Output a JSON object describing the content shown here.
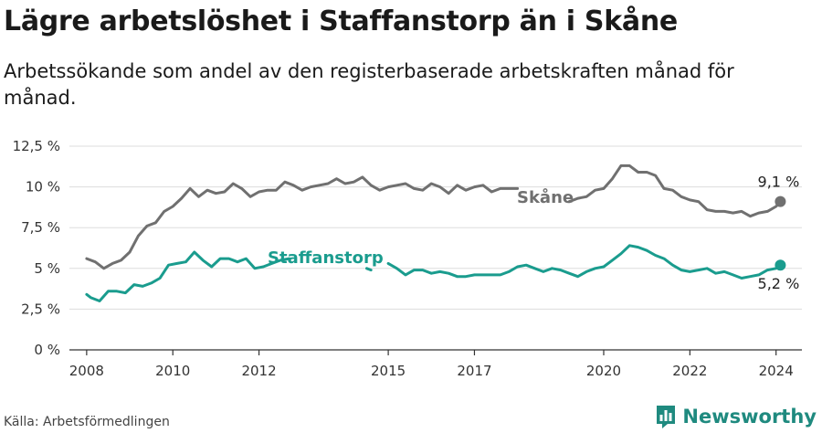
{
  "title": "Lägre arbetslöshet i Staffanstorp än i Skåne",
  "subtitle": "Arbetssökande som andel av den registerbaserade arbetskraften månad för månad.",
  "source": "Källa: Arbetsförmedlingen",
  "brand": {
    "name": "Newsworthy",
    "icon": "newsworthy-logo-icon"
  },
  "colors": {
    "skane": "#707070",
    "staffanstorp": "#1a9c8e",
    "grid": "#dddddd",
    "axis": "#333333",
    "brand": "#1f8a7f"
  },
  "chart_data": {
    "type": "line",
    "title": "Lägre arbetslöshet i Staffanstorp än i Skåne",
    "subtitle": "Arbetssökande som andel av den registerbaserade arbetskraften månad för månad.",
    "x_unit": "year (decimal, monthly)",
    "xlim": [
      2007.6,
      2024.6
    ],
    "ylim": [
      0,
      12.5
    ],
    "y_ticks": [
      0,
      2.5,
      5,
      7.5,
      10,
      12.5
    ],
    "y_tick_labels": [
      "0 %",
      "2,5 %",
      "5 %",
      "7,5 %",
      "10 %",
      "12,5 %"
    ],
    "x_ticks": [
      2008,
      2010,
      2012,
      2015,
      2017,
      2020,
      2022,
      2024
    ],
    "x_tick_labels": [
      "2008",
      "2010",
      "2012",
      "2015",
      "2017",
      "2020",
      "2022",
      "2024"
    ],
    "grid": "horizontal",
    "legend": "inline labels",
    "series": [
      {
        "name": "Skåne",
        "color": "#707070",
        "end_label": "9,1 %",
        "segments": [
          [
            [
              2008.0,
              5.6
            ],
            [
              2008.2,
              5.4
            ],
            [
              2008.4,
              5.0
            ],
            [
              2008.6,
              5.3
            ],
            [
              2008.8,
              5.5
            ],
            [
              2009.0,
              6.0
            ],
            [
              2009.2,
              7.0
            ],
            [
              2009.4,
              7.6
            ],
            [
              2009.6,
              7.8
            ],
            [
              2009.8,
              8.5
            ],
            [
              2010.0,
              8.8
            ],
            [
              2010.2,
              9.3
            ],
            [
              2010.4,
              9.9
            ],
            [
              2010.6,
              9.4
            ],
            [
              2010.8,
              9.8
            ],
            [
              2011.0,
              9.6
            ],
            [
              2011.2,
              9.7
            ],
            [
              2011.4,
              10.2
            ],
            [
              2011.6,
              9.9
            ],
            [
              2011.8,
              9.4
            ],
            [
              2012.0,
              9.7
            ],
            [
              2012.2,
              9.8
            ],
            [
              2012.4,
              9.8
            ],
            [
              2012.6,
              10.3
            ],
            [
              2012.8,
              10.1
            ],
            [
              2013.0,
              9.8
            ],
            [
              2013.2,
              10.0
            ],
            [
              2013.4,
              10.1
            ],
            [
              2013.6,
              10.2
            ],
            [
              2013.8,
              10.5
            ],
            [
              2014.0,
              10.2
            ],
            [
              2014.2,
              10.3
            ],
            [
              2014.4,
              10.6
            ],
            [
              2014.6,
              10.1
            ],
            [
              2014.8,
              9.8
            ],
            [
              2015.0,
              10.0
            ],
            [
              2015.2,
              10.1
            ],
            [
              2015.4,
              10.2
            ],
            [
              2015.6,
              9.9
            ],
            [
              2015.8,
              9.8
            ],
            [
              2016.0,
              10.2
            ],
            [
              2016.2,
              10.0
            ],
            [
              2016.4,
              9.6
            ],
            [
              2016.6,
              10.1
            ],
            [
              2016.8,
              9.8
            ],
            [
              2017.0,
              10.0
            ],
            [
              2017.2,
              10.1
            ],
            [
              2017.4,
              9.7
            ],
            [
              2017.6,
              9.9
            ],
            [
              2017.8,
              9.9
            ],
            [
              2018.0,
              9.9
            ]
          ],
          [
            [
              2019.2,
              9.1
            ],
            [
              2019.4,
              9.3
            ],
            [
              2019.6,
              9.4
            ],
            [
              2019.8,
              9.8
            ],
            [
              2020.0,
              9.9
            ],
            [
              2020.2,
              10.5
            ],
            [
              2020.4,
              11.3
            ],
            [
              2020.6,
              11.3
            ],
            [
              2020.8,
              10.9
            ],
            [
              2021.0,
              10.9
            ],
            [
              2021.2,
              10.7
            ],
            [
              2021.4,
              9.9
            ],
            [
              2021.6,
              9.8
            ],
            [
              2021.8,
              9.4
            ],
            [
              2022.0,
              9.2
            ],
            [
              2022.2,
              9.1
            ],
            [
              2022.4,
              8.6
            ],
            [
              2022.6,
              8.5
            ],
            [
              2022.8,
              8.5
            ],
            [
              2023.0,
              8.4
            ],
            [
              2023.2,
              8.5
            ],
            [
              2023.4,
              8.2
            ],
            [
              2023.6,
              8.4
            ],
            [
              2023.8,
              8.5
            ],
            [
              2024.0,
              8.8
            ],
            [
              2024.1,
              9.1
            ]
          ]
        ]
      },
      {
        "name": "Staffanstorp",
        "color": "#1a9c8e",
        "end_label": "5,2 %",
        "segments": [
          [
            [
              2008.0,
              3.4
            ],
            [
              2008.1,
              3.2
            ],
            [
              2008.3,
              3.0
            ],
            [
              2008.5,
              3.6
            ],
            [
              2008.7,
              3.6
            ],
            [
              2008.9,
              3.5
            ],
            [
              2009.1,
              4.0
            ],
            [
              2009.3,
              3.9
            ],
            [
              2009.5,
              4.1
            ],
            [
              2009.7,
              4.4
            ],
            [
              2009.9,
              5.2
            ],
            [
              2010.1,
              5.3
            ],
            [
              2010.3,
              5.4
            ],
            [
              2010.5,
              6.0
            ],
            [
              2010.7,
              5.5
            ],
            [
              2010.9,
              5.1
            ],
            [
              2011.1,
              5.6
            ],
            [
              2011.3,
              5.6
            ],
            [
              2011.5,
              5.4
            ],
            [
              2011.7,
              5.6
            ],
            [
              2011.9,
              5.0
            ],
            [
              2012.1,
              5.1
            ],
            [
              2012.3,
              5.3
            ],
            [
              2012.5,
              5.5
            ],
            [
              2012.7,
              5.6
            ]
          ],
          [
            [
              2014.5,
              5.0
            ],
            [
              2014.6,
              4.9
            ]
          ],
          [
            [
              2015.0,
              5.3
            ],
            [
              2015.2,
              5.0
            ],
            [
              2015.4,
              4.6
            ],
            [
              2015.6,
              4.9
            ],
            [
              2015.8,
              4.9
            ],
            [
              2016.0,
              4.7
            ],
            [
              2016.2,
              4.8
            ],
            [
              2016.4,
              4.7
            ],
            [
              2016.6,
              4.5
            ],
            [
              2016.8,
              4.5
            ],
            [
              2017.0,
              4.6
            ],
            [
              2017.2,
              4.6
            ],
            [
              2017.4,
              4.6
            ],
            [
              2017.6,
              4.6
            ],
            [
              2017.8,
              4.8
            ],
            [
              2018.0,
              5.1
            ],
            [
              2018.2,
              5.2
            ],
            [
              2018.4,
              5.0
            ],
            [
              2018.6,
              4.8
            ],
            [
              2018.8,
              5.0
            ],
            [
              2019.0,
              4.9
            ],
            [
              2019.2,
              4.7
            ],
            [
              2019.4,
              4.5
            ],
            [
              2019.6,
              4.8
            ],
            [
              2019.8,
              5.0
            ],
            [
              2020.0,
              5.1
            ],
            [
              2020.2,
              5.5
            ],
            [
              2020.4,
              5.9
            ],
            [
              2020.6,
              6.4
            ],
            [
              2020.8,
              6.3
            ],
            [
              2021.0,
              6.1
            ],
            [
              2021.2,
              5.8
            ],
            [
              2021.4,
              5.6
            ],
            [
              2021.6,
              5.2
            ],
            [
              2021.8,
              4.9
            ],
            [
              2022.0,
              4.8
            ],
            [
              2022.2,
              4.9
            ],
            [
              2022.4,
              5.0
            ],
            [
              2022.6,
              4.7
            ],
            [
              2022.8,
              4.8
            ],
            [
              2023.0,
              4.6
            ],
            [
              2023.2,
              4.4
            ],
            [
              2023.4,
              4.5
            ],
            [
              2023.6,
              4.6
            ],
            [
              2023.8,
              4.9
            ],
            [
              2024.0,
              5.0
            ],
            [
              2024.1,
              5.2
            ]
          ]
        ]
      }
    ]
  }
}
